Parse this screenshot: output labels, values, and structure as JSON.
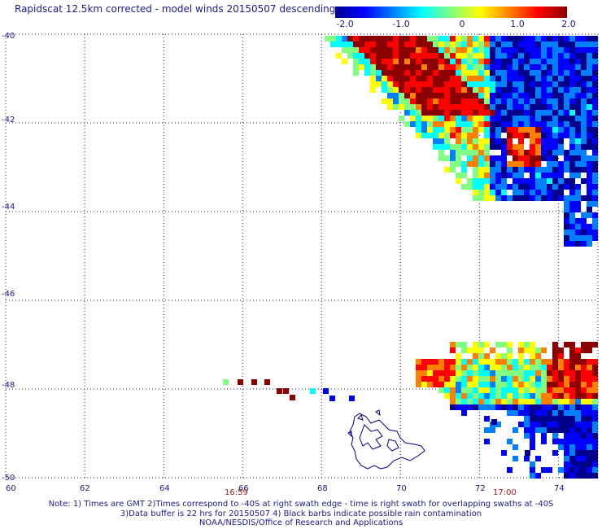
{
  "title": "Rapidscat 12.5km corrected - model winds 20150507 descending",
  "colorbar": {
    "colors": [
      "#00008b",
      "#0000ff",
      "#0080ff",
      "#00ffff",
      "#80ff80",
      "#ffff00",
      "#ff8000",
      "#ff0000",
      "#8b0000"
    ],
    "labels": [
      "-2.0",
      "-1.0",
      "0",
      "1.0",
      "2.0"
    ],
    "range": [
      -2.0,
      2.0
    ]
  },
  "map": {
    "x_ticks": [
      "60",
      "62",
      "64",
      "66",
      "68",
      "70",
      "72",
      "74"
    ],
    "y_ticks": [
      "-40",
      "-42",
      "-44",
      "-46",
      "-48",
      "-50"
    ],
    "lon_range": [
      60,
      75
    ],
    "lat_range": [
      -40,
      -50
    ],
    "grid": true,
    "times": [
      {
        "label": "16:59",
        "lon": 65.7
      },
      {
        "label": "17:00",
        "lon": 72.6
      }
    ]
  },
  "notes": {
    "line1": "Note: 1) Times are GMT 2)Times correspond to -40S at right swath edge - time is right swath for overlapping swaths at -40S",
    "line2": "3)Data buffer is 22 hrs for 20150507 4) Black barbs indicate possible rain contamination",
    "line3": "NOAA/NESDIS/Office of Research and Applications"
  }
}
